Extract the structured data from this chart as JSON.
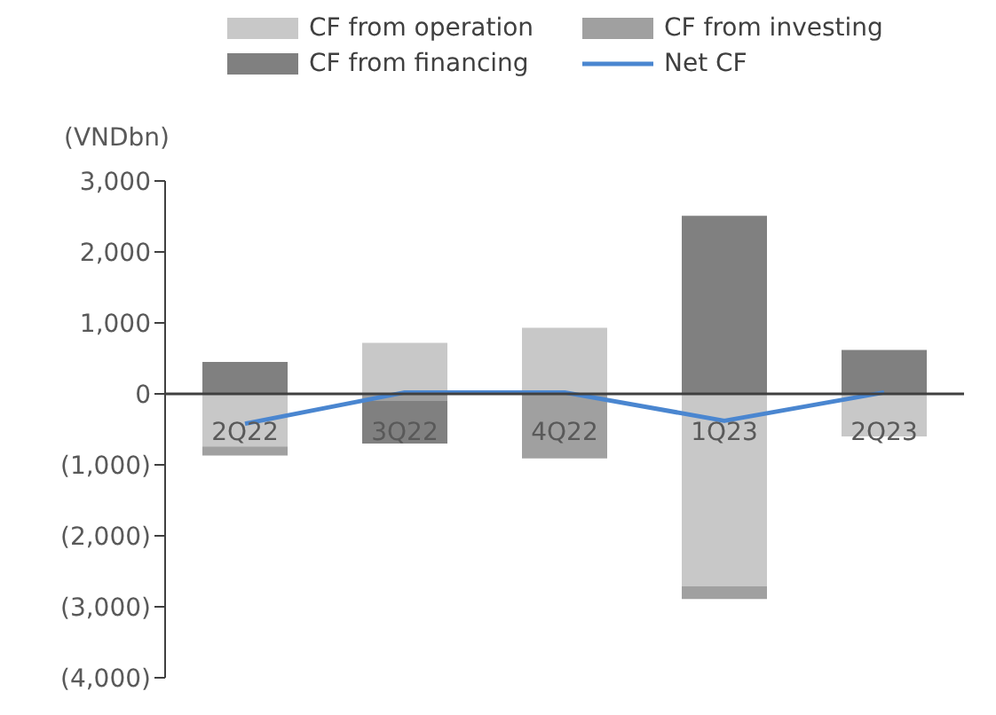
{
  "chart_data": {
    "type": "bar",
    "stacked": true,
    "ylabel": "(VNDbn)",
    "categories": [
      "2Q22",
      "3Q22",
      "4Q22",
      "1Q23",
      "2Q23"
    ],
    "series": [
      {
        "name": "CF from operation",
        "color": "#c8c8c8",
        "values": [
          -740,
          720,
          930,
          -2710,
          -600
        ]
      },
      {
        "name": "CF from investing",
        "color": "#a0a0a0",
        "values": [
          -130,
          -100,
          -910,
          -180,
          0
        ]
      },
      {
        "name": "CF from financing",
        "color": "#808080",
        "values": [
          450,
          -600,
          0,
          2510,
          620
        ]
      },
      {
        "name": "Net CF",
        "type": "line",
        "color": "#4a86d0",
        "values": [
          -420,
          20,
          20,
          -380,
          20
        ]
      }
    ],
    "ylim": [
      -4000,
      3000
    ],
    "yticks": [
      {
        "value": -4000,
        "label": "(4,000)"
      },
      {
        "value": -3000,
        "label": "(3,000)"
      },
      {
        "value": -2000,
        "label": "(2,000)"
      },
      {
        "value": -1000,
        "label": "(1,000)"
      },
      {
        "value": 0,
        "label": "0"
      },
      {
        "value": 1000,
        "label": "1,000"
      },
      {
        "value": 2000,
        "label": "2,000"
      },
      {
        "value": 3000,
        "label": "3,000"
      }
    ],
    "legend": "top",
    "grid": false
  }
}
